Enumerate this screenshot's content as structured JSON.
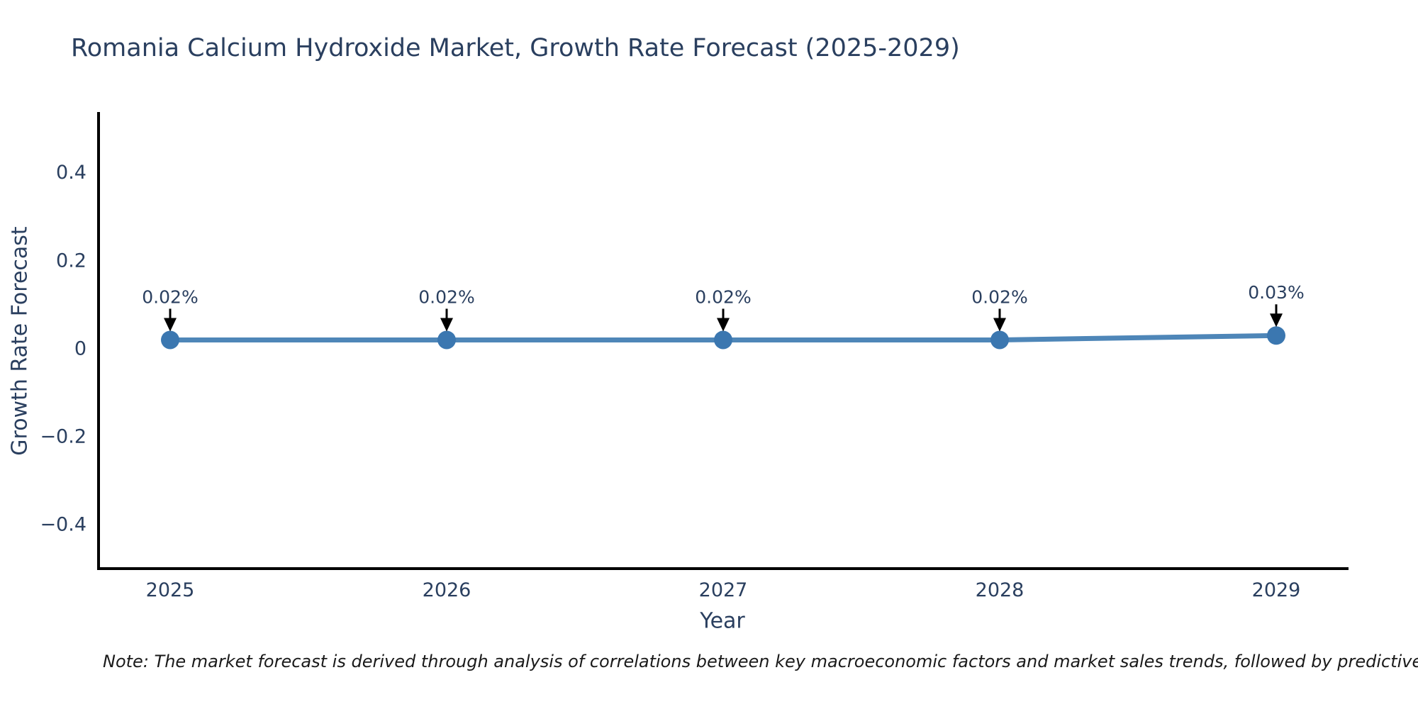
{
  "title": "Romania Calcium Hydroxide Market, Growth Rate Forecast (2025-2029)",
  "note": "Note: The market forecast is derived through analysis of correlations between key macroeconomic factors and market sales trends, followed by predictive modeling to project future sa",
  "chart_data": {
    "type": "line",
    "title": "Romania Calcium Hydroxide Market, Growth Rate Forecast (2025-2029)",
    "xlabel": "Year",
    "ylabel": "Growth Rate Forecast",
    "x": [
      "2025",
      "2026",
      "2027",
      "2028",
      "2029"
    ],
    "series": [
      {
        "name": "Growth Rate Forecast",
        "values": [
          0.02,
          0.02,
          0.02,
          0.02,
          0.03
        ]
      }
    ],
    "point_labels": [
      "0.02%",
      "0.02%",
      "0.02%",
      "0.02%",
      "0.03%"
    ],
    "yticks": [
      0.4,
      0.2,
      0,
      -0.2,
      -0.4
    ],
    "ytick_labels": [
      "0.4",
      "0.2",
      "0",
      "−0.2",
      "−0.4"
    ],
    "ylim": [
      -0.5,
      0.535
    ],
    "grid": false,
    "legend_position": "none",
    "colors": {
      "line": "#4e86b8",
      "marker": "#3b77b0",
      "axis": "#000000",
      "tick_text": "#2a3f5f",
      "annotation_text": "#2a3f5f",
      "arrow": "#000000"
    }
  }
}
